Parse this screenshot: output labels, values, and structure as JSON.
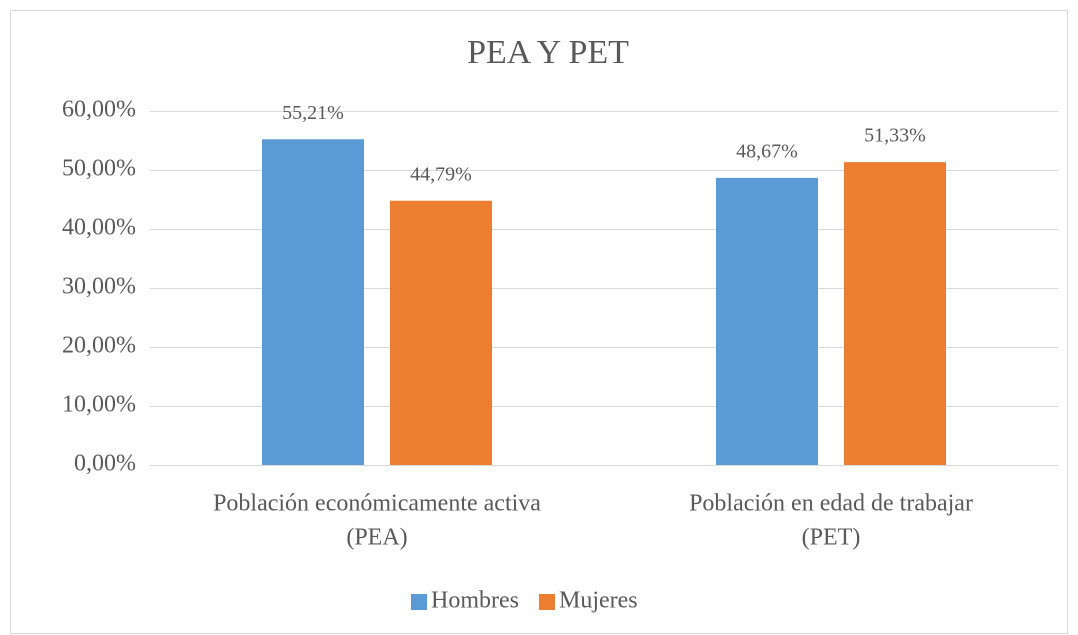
{
  "chart_data": {
    "type": "bar",
    "title": "PEA Y PET",
    "categories": [
      [
        "Población económicamente activa",
        "(PEA)"
      ],
      [
        "Población en edad de trabajar",
        "(PET)"
      ]
    ],
    "series": [
      {
        "name": "Hombres",
        "color": "#5b9bd5",
        "values": [
          55.21,
          48.67
        ],
        "value_labels": [
          "55,21%",
          "48,67%"
        ]
      },
      {
        "name": "Mujeres",
        "color": "#ed7d31",
        "values": [
          44.79,
          51.33
        ],
        "value_labels": [
          "44,79%",
          "51,33%"
        ]
      }
    ],
    "ylim": [
      0,
      60
    ],
    "yticks": [
      {
        "value": 0,
        "label": "0,00%"
      },
      {
        "value": 10,
        "label": "10,00%"
      },
      {
        "value": 20,
        "label": "20,00%"
      },
      {
        "value": 30,
        "label": "30,00%"
      },
      {
        "value": 40,
        "label": "40,00%"
      },
      {
        "value": 50,
        "label": "50,00%"
      },
      {
        "value": 60,
        "label": "60,00%"
      }
    ],
    "grid": true,
    "legend": "bottom"
  }
}
